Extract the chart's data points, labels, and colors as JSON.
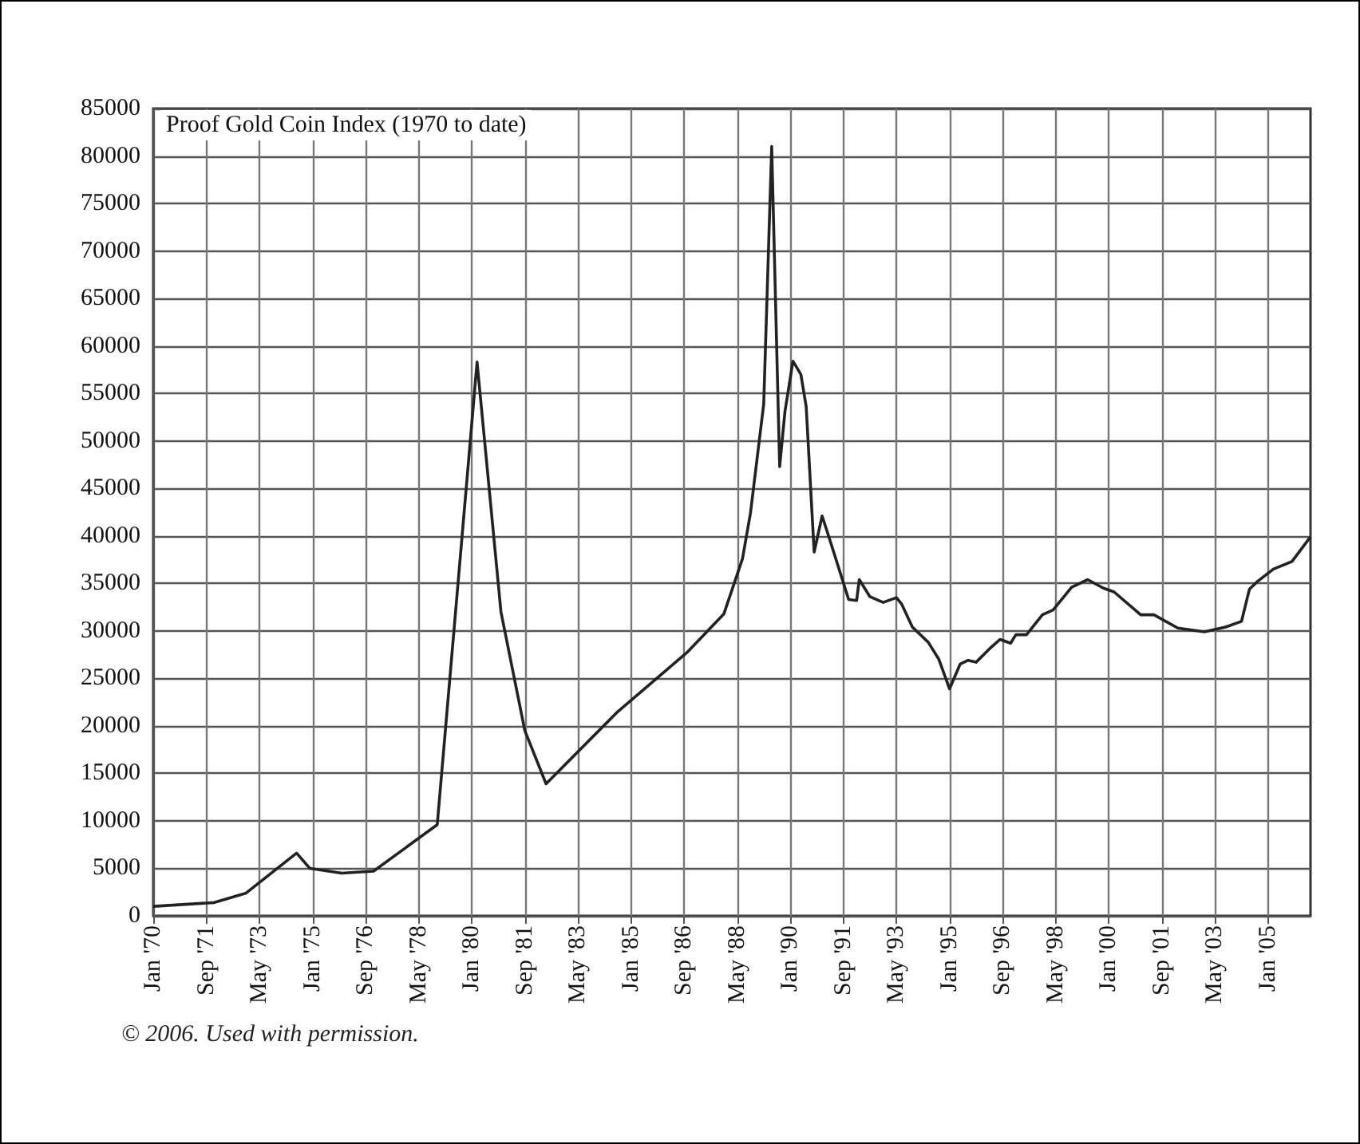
{
  "chart_data": {
    "type": "line",
    "title": "Proof Gold Coin Index (1970 to date)",
    "x": [
      "1970-01",
      "1971-12",
      "1972-12",
      "1974-07",
      "1974-12",
      "1975-12",
      "1976-12",
      "1978-12",
      "1980-03",
      "1980-12",
      "1981-09",
      "1982-05",
      "1984-08",
      "1986-10",
      "1987-12",
      "1988-07",
      "1988-10",
      "1989-03",
      "1989-06",
      "1989-09",
      "1989-11",
      "1990-02",
      "1990-05",
      "1990-07",
      "1990-10",
      "1991-01",
      "1991-04",
      "1991-11",
      "1992-02",
      "1992-03",
      "1992-07",
      "1992-12",
      "1993-05",
      "1993-07",
      "1993-11",
      "1994-05",
      "1994-09",
      "1995-01",
      "1995-05",
      "1995-08",
      "1995-11",
      "1996-04",
      "1996-08",
      "1996-12",
      "1997-02",
      "1997-06",
      "1997-12",
      "1998-04",
      "1998-11",
      "1999-05",
      "1999-11",
      "2000-03",
      "2001-01",
      "2001-06",
      "2002-03",
      "2003-01",
      "2003-09",
      "2004-03",
      "2004-06",
      "2004-09",
      "2005-03",
      "2005-10",
      "2006-05"
    ],
    "series": [
      {
        "color": "#222222",
        "values": [
          1000,
          1400,
          2400,
          6600,
          5000,
          4500,
          4700,
          9600,
          58300,
          32000,
          19500,
          13900,
          21500,
          27700,
          31800,
          37600,
          42400,
          53900,
          81000,
          47300,
          53100,
          58400,
          57000,
          53600,
          38300,
          42100,
          39500,
          33300,
          33200,
          35400,
          33600,
          33000,
          33500,
          32800,
          30400,
          28800,
          27000,
          23900,
          26500,
          26900,
          26700,
          28100,
          29100,
          28700,
          29600,
          29600,
          31700,
          32200,
          34600,
          35400,
          34500,
          34100,
          31700,
          31700,
          30300,
          29900,
          30400,
          31000,
          34400,
          35200,
          36500,
          37300,
          39900
        ]
      }
    ],
    "xlim": [
      "1970-01",
      "2006-05"
    ],
    "xticks": [
      {
        "value": "1970-01",
        "label": "Jan '70"
      },
      {
        "value": "1971-09",
        "label": "Sep '71"
      },
      {
        "value": "1973-05",
        "label": "May '73"
      },
      {
        "value": "1975-01",
        "label": "Jan '75"
      },
      {
        "value": "1976-09",
        "label": "Sep '76"
      },
      {
        "value": "1978-05",
        "label": "May '78"
      },
      {
        "value": "1980-01",
        "label": "Jan '80"
      },
      {
        "value": "1981-09",
        "label": "Sep '81"
      },
      {
        "value": "1983-05",
        "label": "May '83"
      },
      {
        "value": "1985-01",
        "label": "Jan '85"
      },
      {
        "value": "1986-09",
        "label": "Sep '86"
      },
      {
        "value": "1988-05",
        "label": "May '88"
      },
      {
        "value": "1990-01",
        "label": "Jan '90"
      },
      {
        "value": "1991-09",
        "label": "Sep '91"
      },
      {
        "value": "1993-05",
        "label": "May '93"
      },
      {
        "value": "1995-01",
        "label": "Jan '95"
      },
      {
        "value": "1996-09",
        "label": "Sep '96"
      },
      {
        "value": "1998-05",
        "label": "May '98"
      },
      {
        "value": "2000-01",
        "label": "Jan '00"
      },
      {
        "value": "2001-09",
        "label": "Sep '01"
      },
      {
        "value": "2003-05",
        "label": "May '03"
      },
      {
        "value": "2005-01",
        "label": "Jan '05"
      }
    ],
    "ylim": [
      0,
      85000
    ],
    "yticks": [
      0,
      5000,
      10000,
      15000,
      20000,
      25000,
      30000,
      35000,
      40000,
      45000,
      50000,
      55000,
      60000,
      65000,
      70000,
      75000,
      80000,
      85000
    ],
    "grid": true,
    "marker": "none",
    "line_style": "solid",
    "annotations": [
      "© 2006. Used with permission."
    ]
  }
}
